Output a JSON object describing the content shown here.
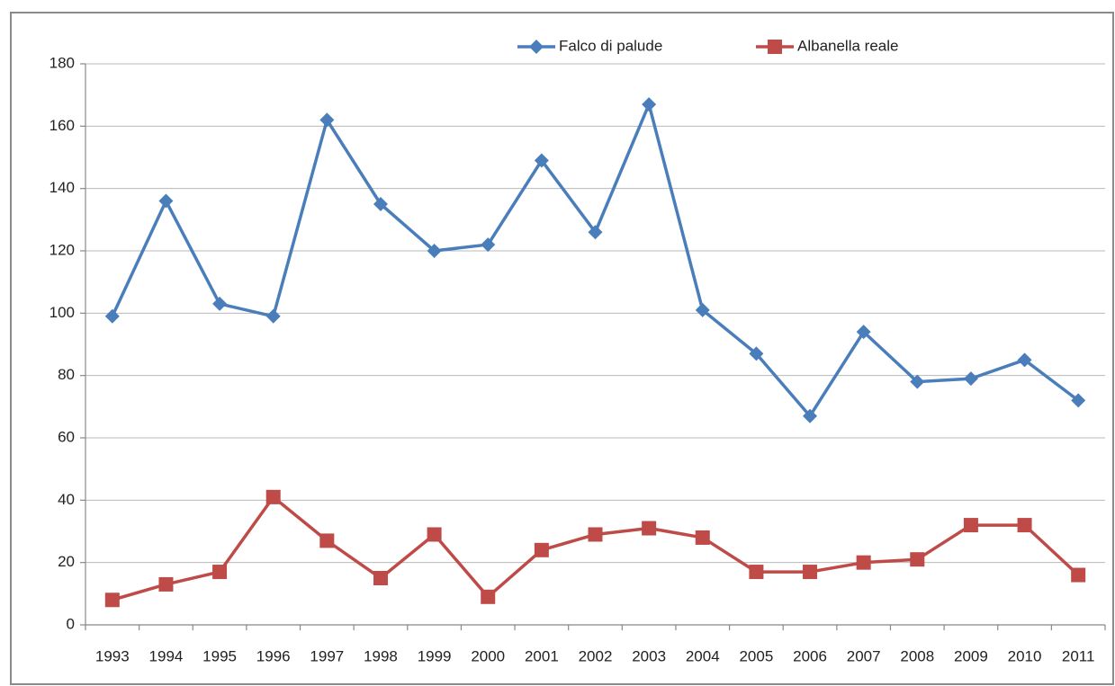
{
  "chart_data": {
    "type": "line",
    "categories": [
      "1993",
      "1994",
      "1995",
      "1996",
      "1997",
      "1998",
      "1999",
      "2000",
      "2001",
      "2002",
      "2003",
      "2004",
      "2005",
      "2006",
      "2007",
      "2008",
      "2009",
      "2010",
      "2011"
    ],
    "series": [
      {
        "name": "Falco di palude",
        "color": "#4a7ebb",
        "marker": "diamond",
        "values": [
          99,
          136,
          103,
          99,
          162,
          135,
          120,
          122,
          149,
          126,
          167,
          101,
          87,
          67,
          94,
          78,
          79,
          85,
          72
        ]
      },
      {
        "name": "Albanella reale",
        "color": "#be4b48",
        "marker": "square",
        "values": [
          8,
          13,
          17,
          41,
          27,
          15,
          29,
          9,
          24,
          29,
          31,
          28,
          17,
          17,
          20,
          21,
          32,
          32,
          16
        ]
      }
    ],
    "ylim": [
      0,
      180
    ],
    "yticks": [
      0,
      20,
      40,
      60,
      80,
      100,
      120,
      140,
      160,
      180
    ],
    "grid": true,
    "legend": "top"
  }
}
